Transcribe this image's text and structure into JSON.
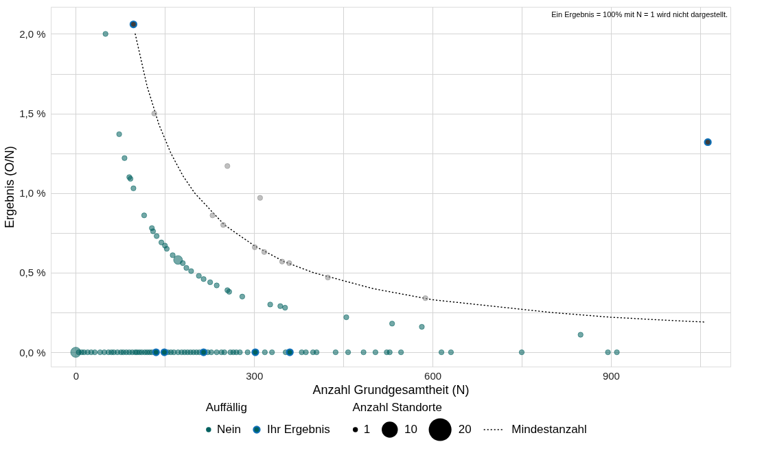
{
  "chart_data": {
    "type": "bubble",
    "xlabel": "Anzahl Grundgesamtheit (N)",
    "ylabel": "Ergebnis (O/N)",
    "legend_title": [
      "Auffällig",
      "Anzahl Standorte"
    ],
    "annotations": [
      "Ein Ergebnis = 100% mit N = 1 wird nicht dargestellt."
    ],
    "xlim": [
      -42,
      1101
    ],
    "ylim": [
      -0.09,
      2.17
    ],
    "xticks": [
      0,
      {
        "value": 150,
        "label": null
      },
      300,
      {
        "value": 450,
        "label": null
      },
      600,
      {
        "value": 750,
        "label": null
      },
      900,
      {
        "value": 1050,
        "label": null
      }
    ],
    "yticks": [
      {
        "value": 0,
        "label": "0,0 %"
      },
      {
        "value": 0.25,
        "label": null
      },
      {
        "value": 0.5,
        "label": "0,5 %"
      },
      {
        "value": 0.75,
        "label": null
      },
      {
        "value": 1.0,
        "label": "1,0 %"
      },
      {
        "value": 1.25,
        "label": null
      },
      {
        "value": 1.5,
        "label": "1,5 %"
      },
      {
        "value": 1.75,
        "label": null
      },
      {
        "value": 2.0,
        "label": "2,0 %"
      }
    ],
    "grid": true,
    "legend": "bottom",
    "marker": "circle",
    "size_legend": [
      1,
      10,
      20
    ],
    "series": [
      {
        "name": "Mindestanzahl",
        "type": "line",
        "color": "#000000",
        "line_style": "dotted",
        "marker": "none",
        "x": [
          100,
          120,
          140,
          160,
          180,
          200,
          250,
          300,
          350,
          400,
          500,
          600,
          700,
          800,
          900,
          1000,
          1058
        ],
        "values": [
          2.0,
          1.67,
          1.43,
          1.25,
          1.11,
          1.0,
          0.8,
          0.67,
          0.57,
          0.5,
          0.4,
          0.33,
          0.29,
          0.25,
          0.22,
          0.2,
          0.19
        ]
      },
      {
        "name": "Nein",
        "color": "#00605f",
        "x": [
          50,
          73,
          82,
          90,
          92,
          97,
          115,
          128,
          130,
          136,
          144,
          150,
          153,
          163,
          172,
          180,
          186,
          194,
          207,
          215,
          226,
          237,
          255,
          258,
          280,
          327,
          344,
          352,
          455,
          532,
          582,
          849,
          0,
          5,
          10,
          14,
          20,
          26,
          32,
          41,
          48,
          55,
          60,
          64,
          70,
          76,
          80,
          85,
          90,
          95,
          100,
          103,
          107,
          111,
          116,
          120,
          124,
          128,
          155,
          160,
          165,
          172,
          178,
          183,
          188,
          193,
          198,
          203,
          208,
          222,
          228,
          237,
          245,
          250,
          260,
          265,
          270,
          276,
          289,
          318,
          330,
          353,
          380,
          387,
          399,
          405,
          437,
          458,
          484,
          504,
          523,
          528,
          547,
          615,
          631,
          750,
          895,
          910
        ],
        "values": [
          2.0,
          1.37,
          1.22,
          1.1,
          1.09,
          1.03,
          0.86,
          0.78,
          0.76,
          0.73,
          0.69,
          0.67,
          0.65,
          0.61,
          0.58,
          0.56,
          0.53,
          0.51,
          0.48,
          0.46,
          0.44,
          0.42,
          0.39,
          0.38,
          0.35,
          0.3,
          0.29,
          0.28,
          0.22,
          0.18,
          0.16,
          0.11,
          0,
          0,
          0,
          0,
          0,
          0,
          0,
          0,
          0,
          0,
          0,
          0,
          0,
          0,
          0,
          0,
          0,
          0,
          0,
          0,
          0,
          0,
          0,
          0,
          0,
          0,
          0,
          0,
          0,
          0,
          0,
          0,
          0,
          0,
          0,
          0,
          0,
          0,
          0,
          0,
          0,
          0,
          0,
          0,
          0,
          0,
          0,
          0,
          0,
          0,
          0,
          0,
          0,
          0,
          0,
          0,
          0,
          0,
          0,
          0,
          0,
          0,
          0,
          0,
          0,
          0
        ],
        "sizes": [
          1,
          1,
          1,
          1,
          1,
          1,
          1,
          1,
          1,
          1,
          1,
          1,
          1,
          1,
          3,
          1,
          1,
          1,
          1,
          1,
          1,
          1,
          1,
          1,
          1,
          1,
          1,
          1,
          1,
          1,
          1,
          1,
          4,
          1,
          1,
          1,
          1,
          1,
          1,
          1,
          1,
          1,
          1,
          1,
          1,
          1,
          1,
          1,
          1,
          1,
          1,
          1,
          1,
          1,
          1,
          1,
          1,
          1,
          1,
          1,
          1,
          1,
          1,
          1,
          1,
          1,
          1,
          1,
          1,
          1,
          1,
          1,
          1,
          1,
          1,
          1,
          1,
          1,
          1,
          1,
          1,
          1,
          1,
          1,
          1,
          1,
          1,
          1,
          1,
          1,
          1,
          1,
          1,
          1,
          1,
          1,
          1,
          1
        ]
      },
      {
        "color": "#8c8c8c",
        "x": [
          132,
          255,
          310,
          230,
          248,
          301,
          317,
          347,
          359,
          424,
          588
        ],
        "values": [
          1.5,
          1.17,
          0.97,
          0.86,
          0.8,
          0.66,
          0.63,
          0.57,
          0.56,
          0.47,
          0.34
        ],
        "sizes": [
          1,
          1,
          1,
          1,
          1,
          1,
          1,
          1,
          1,
          1,
          1
        ]
      },
      {
        "name": "Ihr Ergebnis",
        "color": "#0f70b7",
        "colors": [
          "#3c3c3c",
          "#3c3c3c",
          "#00605f",
          "#00605f",
          "#00605f",
          "#00605f",
          "#00605f"
        ],
        "x": [
          97,
          1063,
          135,
          149,
          215,
          302,
          360
        ],
        "values": [
          2.06,
          1.32,
          0,
          0,
          0,
          0,
          0
        ],
        "sizes": [
          1.5,
          1.5,
          1.5,
          1.5,
          1.5,
          1.5,
          1.5
        ]
      }
    ]
  }
}
